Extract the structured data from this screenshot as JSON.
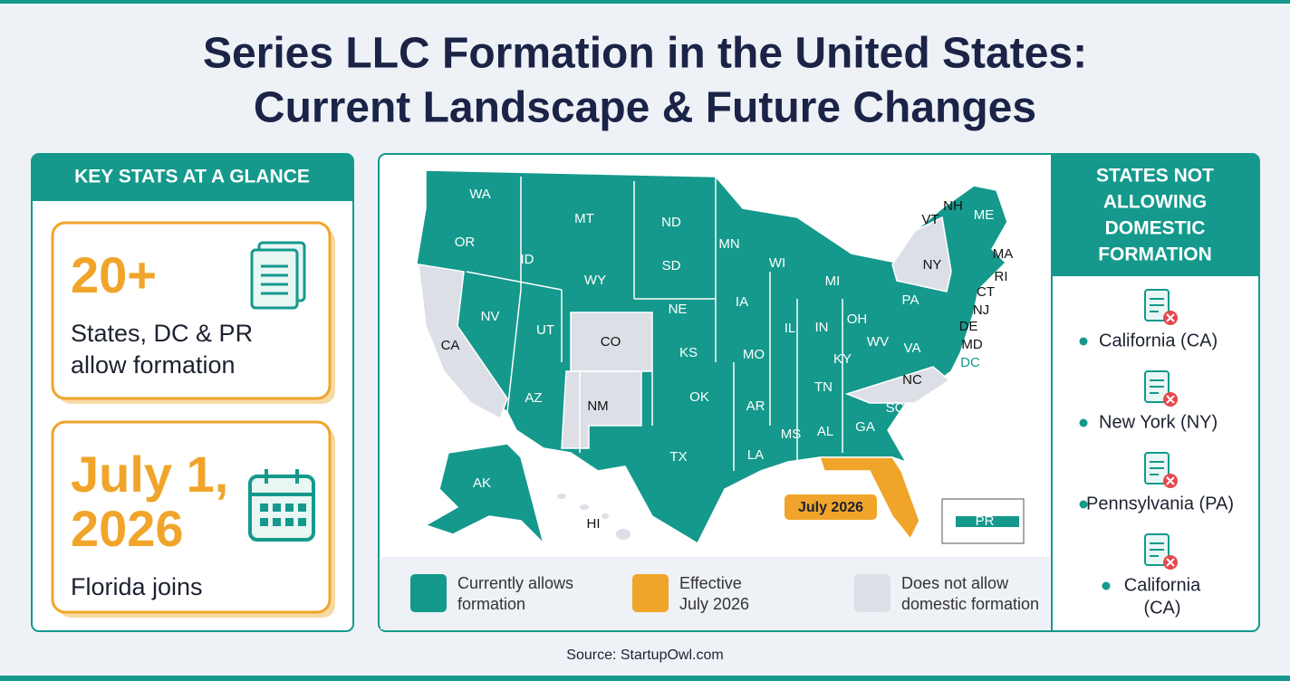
{
  "title": [
    "Series LLC Formation in the United States:",
    "Current Landscape & Future Changes"
  ],
  "key_stats": {
    "heading": "KEY STATS AT A GLANCE",
    "cards": [
      {
        "value": [
          "20+"
        ],
        "text": [
          "States, DC & PR",
          "allow formation"
        ]
      },
      {
        "value": [
          "July 1,",
          "2026"
        ],
        "text": [
          "Florida joins"
        ]
      }
    ]
  },
  "map": {
    "states": [
      "WA",
      "OR",
      "CA",
      "NV",
      "ID",
      "MT",
      "WY",
      "UT",
      "AZ",
      "CO",
      "NM",
      "ND",
      "SD",
      "NE",
      "KS",
      "OK",
      "TX",
      "MN",
      "IA",
      "MO",
      "AR",
      "LA",
      "WI",
      "IL",
      "MI",
      "IN",
      "OH",
      "KY",
      "TN",
      "MS",
      "AL",
      "GA",
      "SC",
      "NC",
      "VA",
      "WV",
      "PA",
      "NY",
      "VT",
      "NH",
      "ME",
      "MA",
      "RI",
      "CT",
      "NJ",
      "DE",
      "MD",
      "DC",
      "AK",
      "HI",
      "PR"
    ],
    "callout": "July 2026",
    "legend": [
      {
        "label": [
          "Currently allows",
          "formation"
        ],
        "color": "#14998c"
      },
      {
        "label": [
          "Effective",
          "July 2026"
        ],
        "color": "#f0a52a"
      },
      {
        "label": [
          "Does not allow",
          "domestic formation"
        ],
        "color": "#dcdfe6"
      }
    ]
  },
  "not_allowing": {
    "heading": [
      "STATES NOT",
      "ALLOWING",
      "DOMESTIC",
      "FORMATION"
    ],
    "items": [
      [
        "California (CA)"
      ],
      [
        "New York (NY)"
      ],
      [
        "Pennsylvania (PA)"
      ],
      [
        "California",
        "(CA)"
      ]
    ]
  },
  "source": "Source: StartupOwl.com"
}
